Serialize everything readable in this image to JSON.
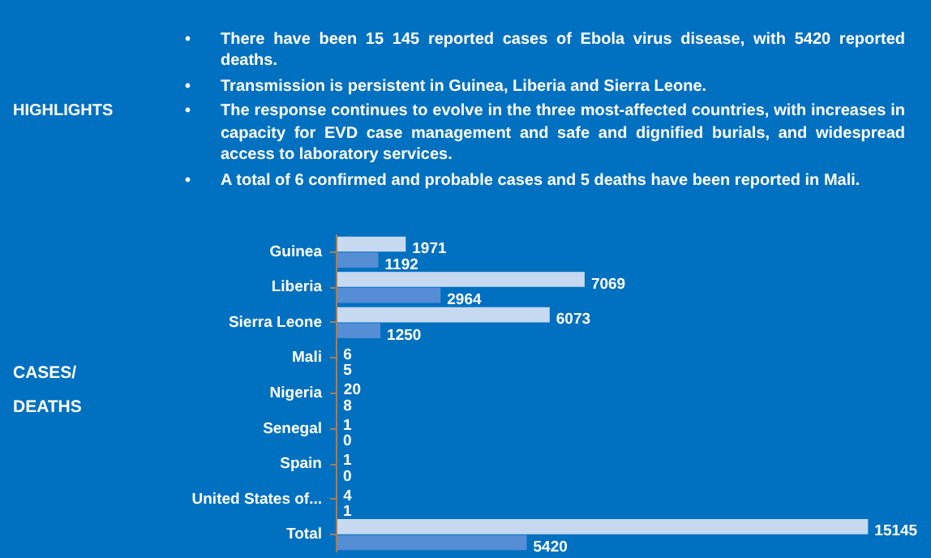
{
  "chart_data": {
    "type": "bar",
    "orientation": "horizontal",
    "data_labels": true,
    "annotations": [
      "HIGHLIGHTS",
      "• There have been 15 145 reported cases of Ebola virus disease, with 5420 reported deaths.",
      "• Transmission is persistent in Guinea, Liberia and Sierra Leone.",
      "• The response continues to evolve in the three most-affected countries, with increases in capacity for EVD case management and safe and dignified burials, and widespread access to laboratory services.",
      "• A total of 6 confirmed and probable cases and 5 deaths have been reported in Mali.",
      "CASES/ DEATHS"
    ],
    "categories": [
      "Guinea",
      "Liberia",
      "Sierra Leone",
      "Mali",
      "Nigeria",
      "Senegal",
      "Spain",
      "United States of...",
      "Total"
    ],
    "series": [
      {
        "color": "#c6d9f1",
        "values": [
          1971,
          7069,
          6073,
          6,
          20,
          1,
          1,
          4,
          15145
        ]
      },
      {
        "color": "#558ed5",
        "values": [
          1192,
          2964,
          1250,
          5,
          8,
          0,
          0,
          1,
          5420
        ]
      }
    ]
  }
}
